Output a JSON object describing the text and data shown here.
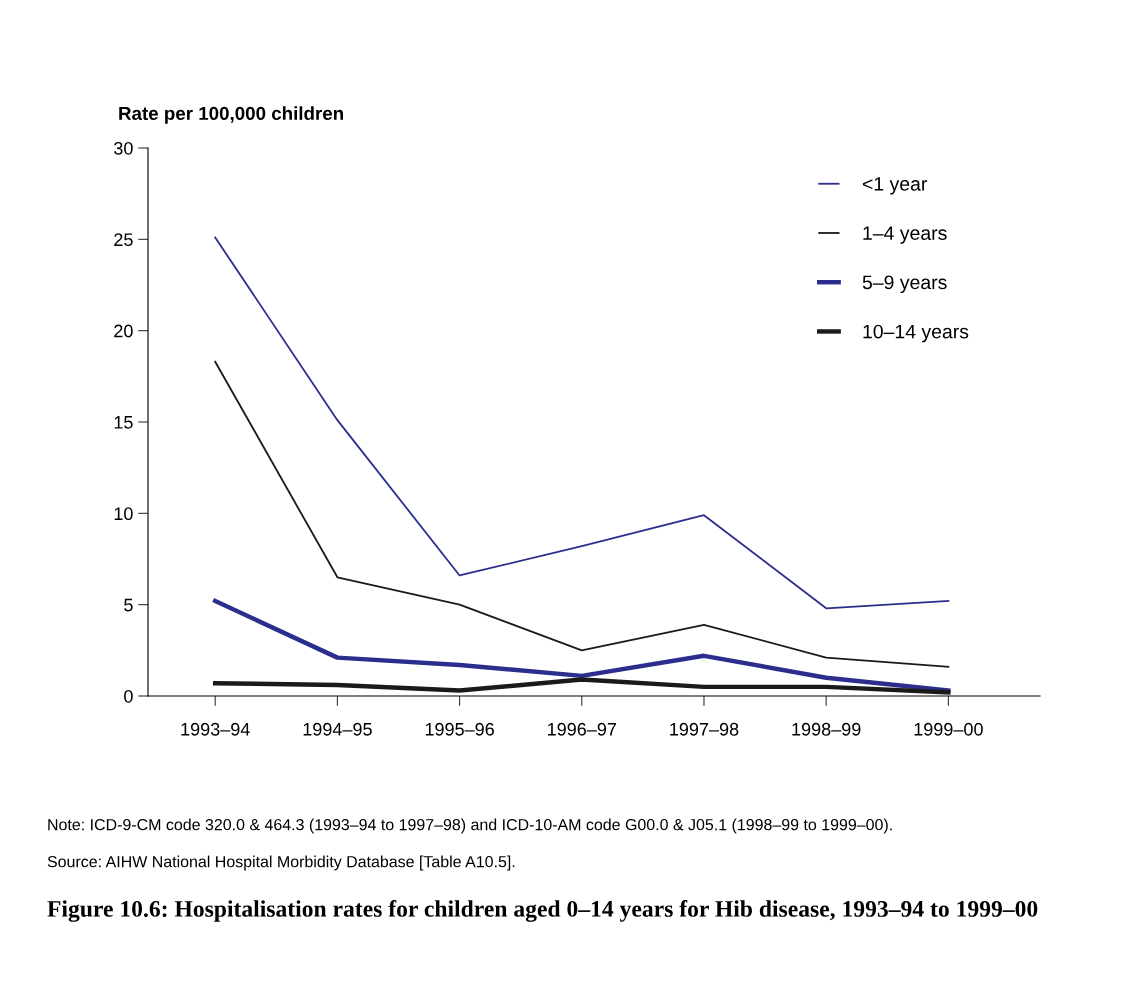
{
  "chart_data": {
    "type": "line",
    "title": "Figure 10.6: Hospitalisation rates for children aged 0–14 years for Hib disease, 1993–94 to 1999–00",
    "ylabel": "Rate per 100,000 children",
    "categories": [
      "1993–94",
      "1994–95",
      "1995–96",
      "1996–97",
      "1997–98",
      "1998–99",
      "1999–00"
    ],
    "series": [
      {
        "name": "<1 year",
        "color": "#2b2e8c",
        "values": [
          25.1,
          15.1,
          6.6,
          8.2,
          9.9,
          4.8,
          5.2
        ]
      },
      {
        "name": "1–4 years",
        "color": "#1a1a1a",
        "values": [
          18.3,
          6.5,
          5.0,
          2.5,
          3.9,
          2.1,
          1.6
        ]
      },
      {
        "name": "5–9 years",
        "color": "#2b2e8c",
        "values": [
          5.2,
          2.1,
          1.7,
          1.1,
          2.2,
          1.0,
          0.3
        ]
      },
      {
        "name": "10–14 years",
        "color": "#1a1a1a",
        "values": [
          0.7,
          0.6,
          0.3,
          0.9,
          0.5,
          0.5,
          0.2
        ]
      }
    ],
    "ylim": [
      0,
      30
    ],
    "yticks": [
      0,
      5,
      10,
      15,
      20,
      25,
      30
    ],
    "grid": false,
    "legend": "top right",
    "marker": "none",
    "line_style": "solid",
    "annotations": [
      "Note: ICD-9-CM code 320.0 & 464.3 (1993–94 to 1997–98) and ICD-10-AM code G00.0 & J05.1 (1998–99 to 1999–00).",
      "Source: AIHW National Hospital Morbidity Database [Table A10.5]."
    ]
  }
}
